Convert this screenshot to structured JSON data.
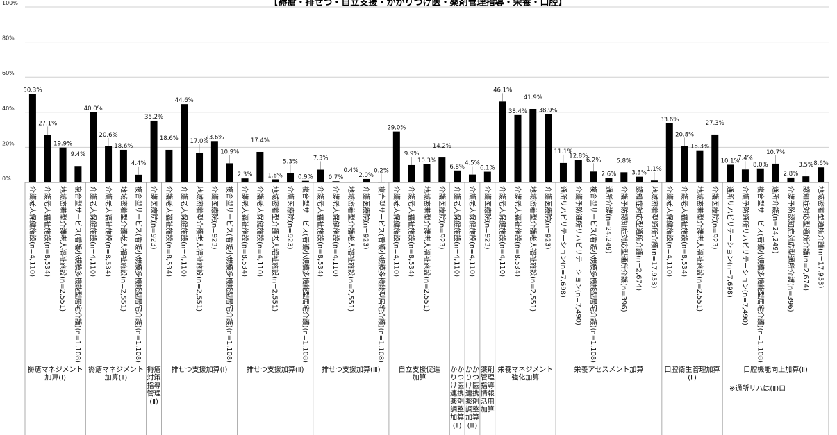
{
  "chart_data": {
    "type": "bar",
    "title": "【褥瘡・排せつ・自立支援・かかりつけ医・薬剤管理指導・栄養・口腔】",
    "ylim": [
      0,
      100
    ],
    "yticks": [
      "0%",
      "20%",
      "40%",
      "60%",
      "80%",
      "100%"
    ],
    "grid": true,
    "bar_color": "#000000",
    "categories": [
      "介護老人保健施設(n=4,110)",
      "介護老人福祉施設(n=8,534)",
      "地域密着型介護老人福祉施設(n=2,551)",
      "複合型サービス(看護小規模多機能型居宅介護)(n=1,108)",
      "介護老人保健施設(n=4,110)",
      "介護老人福祉施設(n=8,534)",
      "地域密着型介護老人福祉施設(n=2,551)",
      "複合型サービス(看護小規模多機能型居宅介護)(n=1,108)",
      "介護医療院(n=923)",
      "介護老人福祉施設(n=8,534)",
      "介護老人保健施設(n=4,110)",
      "地域密着型介護老人福祉施設(n=2,551)",
      "介護医療院(n=923)",
      "複合型サービス(看護小規模多機能型居宅介護)(n=1,108)",
      "介護老人福祉施設(n=8,534)",
      "介護老人保健施設(n=4,110)",
      "地域密着型介護老人福祉施設(n=2,551)",
      "介護医療院(n=923)",
      "複合型サービス(看護小規模多機能型居宅介護)(n=1,108)",
      "介護老人福祉施設(n=8,534)",
      "介護老人保健施設(n=4,110)",
      "地域密着型介護老人福祉施設(n=2,551)",
      "介護医療院(n=923)",
      "複合型サービス(看護小規模多機能型居宅介護)(n=1,108)",
      "介護老人保健施設(n=4,110)",
      "介護老人福祉施設(n=8,534)",
      "地域密着型介護老人福祉施設(n=2,551)",
      "介護医療院(n=923)",
      "介護老人保健施設(n=4,110)",
      "介護老人保健施設(n=4,110)",
      "介護医療院(n=923)",
      "介護老人保健施設(n=4,110)",
      "介護老人福祉施設(n=8,534)",
      "地域密着型介護老人福祉施設(n=2,551)",
      "介護医療院(n=923)",
      "通所リハビリテーション(n=7,698)",
      "介護予防通所リハビリテーション(n=7,490)",
      "複合型サービス(看護小規模多機能型居宅介護)(n=1,108)",
      "通所介護(n=24,249)",
      "介護予防認知症対応型通所介護(n=396)",
      "認知症対応型通所介護(n=2,674)",
      "地域密着型通所介護(n=17,953)",
      "介護老人保健施設(n=4,110)",
      "介護老人福祉施設(n=8,534)",
      "地域密着型介護老人福祉施設(n=2,551)",
      "介護医療院(n=923)",
      "通所リハビリテーション(n=7,698)",
      "介護予防通所リハビリテーション(n=7,490)",
      "複合型サービス(看護小規模多機能型居宅介護)(n=1,108)",
      "通所介護(n=24,249)",
      "介護予防認知症対応型通所介護(n=396)",
      "認知症対応型通所介護(n=2,674)",
      "地域密着型通所介護(n=17,953)"
    ],
    "values": [
      50.3,
      27.1,
      19.9,
      9.4,
      40.0,
      20.6,
      18.6,
      4.4,
      35.2,
      18.6,
      44.6,
      17.0,
      23.6,
      10.9,
      2.3,
      17.4,
      1.8,
      5.3,
      0.9,
      7.3,
      0.7,
      0.4,
      2.0,
      0.2,
      29.0,
      9.9,
      10.3,
      14.2,
      6.8,
      4.5,
      6.1,
      46.1,
      38.4,
      41.9,
      38.9,
      11.1,
      12.8,
      6.2,
      2.6,
      5.8,
      3.3,
      1.1,
      33.6,
      20.8,
      18.3,
      27.3,
      10.1,
      7.4,
      8.0,
      10.7,
      2.8,
      3.5,
      8.6
    ],
    "value_labels": [
      "50.3%",
      "27.1%",
      "19.9%",
      "9.4%",
      "40.0%",
      "20.6%",
      "18.6%",
      "4.4%",
      "35.2%",
      "18.6%",
      "44.6%",
      "17.0%",
      "23.6%",
      "10.9%",
      "2.3%",
      "17.4%",
      "1.8%",
      "5.3%",
      "0.9%",
      "7.3%",
      "0.7%",
      "0.4%",
      "2.0%",
      "0.2%",
      "29.0%",
      "9.9%",
      "10.3%",
      "14.2%",
      "6.8%",
      "4.5%",
      "6.1%",
      "46.1%",
      "38.4%",
      "41.9%",
      "38.9%",
      "11.1%",
      "12.8%",
      "6.2%",
      "2.6%",
      "5.8%",
      "3.3%",
      "1.1%",
      "33.6%",
      "20.8%",
      "18.3%",
      "27.3%",
      "10.1%",
      "7.4%",
      "8.0%",
      "10.7%",
      "2.8%",
      "3.5%",
      "8.6%"
    ],
    "groups": [
      {
        "label": [
          "褥瘡マネジメント",
          "加算(Ⅰ)"
        ],
        "count": 4
      },
      {
        "label": [
          "褥瘡マネジメント",
          "加算(Ⅱ)"
        ],
        "count": 4
      },
      {
        "label": [
          "褥瘡",
          "対策",
          "指導",
          "管理",
          "(Ⅱ)"
        ],
        "count": 1
      },
      {
        "label": [
          "排せつ支援加算(Ⅰ)"
        ],
        "count": 5
      },
      {
        "label": [
          "排せつ支援加算(Ⅱ)"
        ],
        "count": 5
      },
      {
        "label": [
          "排せつ支援加算(Ⅲ)"
        ],
        "count": 5
      },
      {
        "label": [
          "自立支援促進",
          "加算"
        ],
        "count": 4
      },
      {
        "label": [
          "かか",
          "りつ",
          "け医",
          "連携",
          "薬剤",
          "調整",
          "加算",
          "(Ⅱ)"
        ],
        "count": 1
      },
      {
        "label": [
          "かか",
          "りつ",
          "け医",
          "連携",
          "薬剤",
          "調整",
          "加算",
          "(Ⅲ)"
        ],
        "count": 1
      },
      {
        "label": [
          "薬剤",
          "管理",
          "指導",
          "情報",
          "活用",
          "加算"
        ],
        "count": 1
      },
      {
        "label": [
          "栄養マネジメント",
          "強化加算"
        ],
        "count": 4
      },
      {
        "label": [
          "栄養アセスメント加算"
        ],
        "count": 7
      },
      {
        "label": [
          "口腔衛生管理加算",
          "(Ⅱ)"
        ],
        "count": 4
      },
      {
        "label": [
          "口腔機能向上加算(Ⅱ)"
        ],
        "count": 7
      }
    ],
    "note": "※通所リハは(Ⅱ)ロ"
  }
}
